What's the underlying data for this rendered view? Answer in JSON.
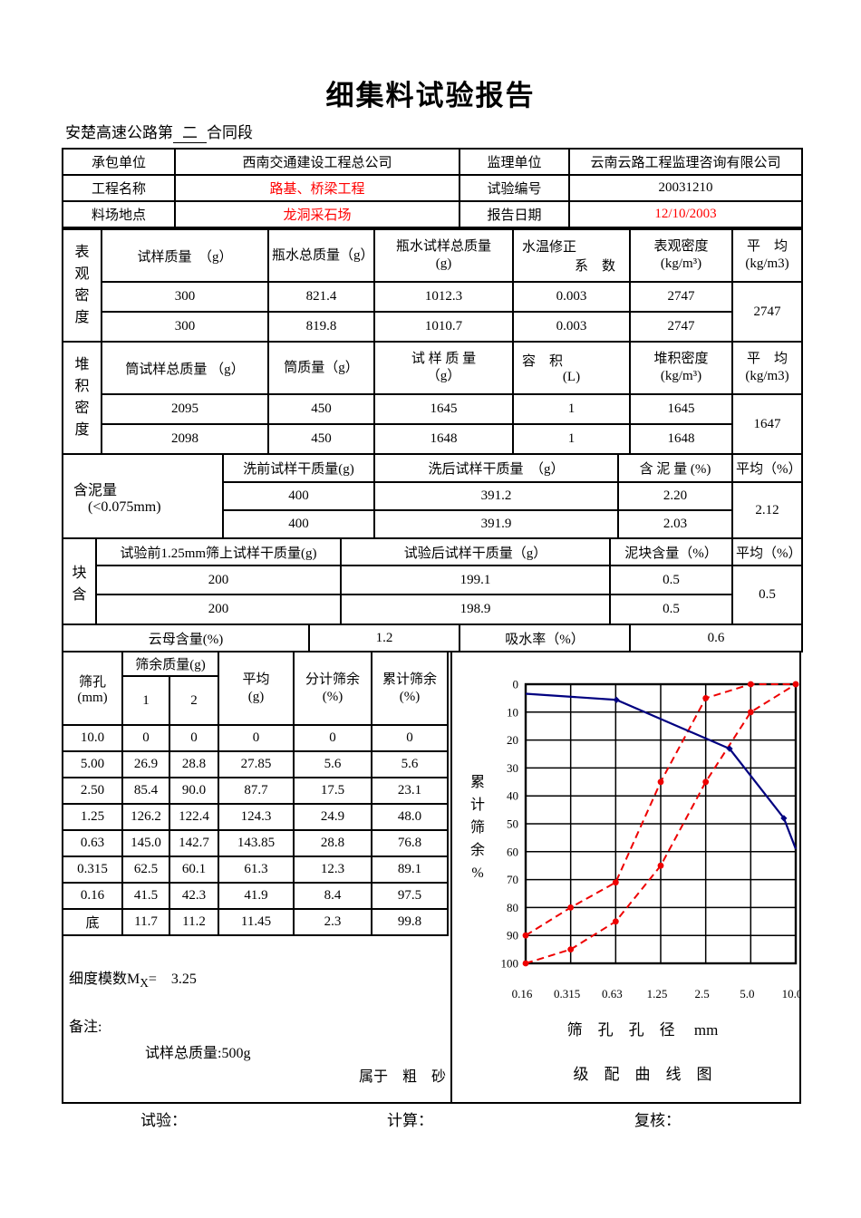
{
  "page": {
    "title": "细集料试验报告",
    "subtitle_prefix": "安楚高速公路第",
    "subtitle_underlined": "二",
    "subtitle_suffix": "合同段"
  },
  "colors": {
    "highlight_red": "#ff0000",
    "sample_curve_blue": "#000080",
    "envelope_red": "#ff0000"
  },
  "info": {
    "contractor_label": "承包单位",
    "contractor_value": "西南交通建设工程总公司",
    "supervisor_label": "监理单位",
    "supervisor_value": "云南云路工程监理咨询有限公司",
    "project_label": "工程名称",
    "project_value": "路基、桥梁工程",
    "test_no_label": "试验编号",
    "test_no_value": "20031210",
    "site_label": "料场地点",
    "site_value": "龙洞采石场",
    "date_label": "报告日期",
    "date_value": "12/10/2003"
  },
  "apparent_density": {
    "section_label": "表观密度",
    "headers": [
      "试样质量　（g）",
      "瓶水总质量（g）",
      "瓶水试样总质量\n(g)",
      "水温修正",
      "表观密度\n(kg/m³)",
      "平　均\n(kg/m3)"
    ],
    "header3_line2": "系　数",
    "rows": [
      [
        "300",
        "821.4",
        "1012.3",
        "0.003",
        "2747"
      ],
      [
        "300",
        "819.8",
        "1010.7",
        "0.003",
        "2747"
      ]
    ],
    "average": "2747"
  },
  "bulk_density": {
    "section_label": "堆积密度",
    "headers": [
      "筒试样总质量 （g）",
      "筒质量（g）",
      "试 样 质 量\n（g）",
      "容　积",
      "堆积密度\n(kg/m³)",
      "平　均\n(kg/m3)"
    ],
    "header3_line2": "(L)",
    "rows": [
      [
        "2095",
        "450",
        "1645",
        "1",
        "1645"
      ],
      [
        "2098",
        "450",
        "1648",
        "1",
        "1648"
      ]
    ],
    "average": "1647"
  },
  "mud_content": {
    "section_label_line1": "含泥量",
    "section_label_line2": "(<0.075mm)",
    "headers": [
      "洗前试样干质量(g)",
      "洗后试样干质量　（g）",
      "含 泥 量 (%)",
      "平均（%）"
    ],
    "rows": [
      [
        "400",
        "391.2",
        "2.20"
      ],
      [
        "400",
        "391.9",
        "2.03"
      ]
    ],
    "average": "2.12"
  },
  "mud_lump": {
    "section_label_top": "块",
    "section_label_bottom": "含",
    "headers": [
      "试验前1.25mm筛上试样干质量(g)",
      "试验后试样干质量（g）",
      "泥块含量（%）",
      "平均（%）"
    ],
    "rows": [
      [
        "200",
        "199.1",
        "0.5"
      ],
      [
        "200",
        "198.9",
        "0.5"
      ]
    ],
    "average": "0.5"
  },
  "mica_row": {
    "mica_label": "云母含量(%)",
    "mica_value": "1.2",
    "absorption_label": "吸水率（%）",
    "absorption_value": "0.6"
  },
  "sieve": {
    "hole_header": "筛孔",
    "hole_unit": "(mm)",
    "mass_header": "筛余质量(g)",
    "col1": "1",
    "col2": "2",
    "avg_header": "平均\n(g)",
    "partial_header": "分计筛余\n(%)",
    "cumulative_header": "累计筛余\n(%)",
    "rows": [
      {
        "size": "10.0",
        "m1": "0",
        "m2": "0",
        "avg": "0",
        "partial": "0",
        "cum": "0"
      },
      {
        "size": "5.00",
        "m1": "26.9",
        "m2": "28.8",
        "avg": "27.85",
        "partial": "5.6",
        "cum": "5.6"
      },
      {
        "size": "2.50",
        "m1": "85.4",
        "m2": "90.0",
        "avg": "87.7",
        "partial": "17.5",
        "cum": "23.1"
      },
      {
        "size": "1.25",
        "m1": "126.2",
        "m2": "122.4",
        "avg": "124.3",
        "partial": "24.9",
        "cum": "48.0"
      },
      {
        "size": "0.63",
        "m1": "145.0",
        "m2": "142.7",
        "avg": "143.85",
        "partial": "28.8",
        "cum": "76.8"
      },
      {
        "size": "0.315",
        "m1": "62.5",
        "m2": "60.1",
        "avg": "61.3",
        "partial": "12.3",
        "cum": "89.1"
      },
      {
        "size": "0.16",
        "m1": "41.5",
        "m2": "42.3",
        "avg": "41.9",
        "partial": "8.4",
        "cum": "97.5"
      },
      {
        "size": "底",
        "m1": "11.7",
        "m2": "11.2",
        "avg": "11.45",
        "partial": "2.3",
        "cum": "99.8"
      }
    ]
  },
  "notes": {
    "fineness_prefix": "细度模数M",
    "fineness_sub": "X",
    "fineness_eq": "=",
    "fineness_value": "3.25",
    "remark_label": "备注:",
    "sample_total": "试样总质量:500g",
    "classification": "属于　粗　砂"
  },
  "signatures": {
    "test": "试验：",
    "calc": "计算：",
    "review": "复核："
  },
  "chart_data": {
    "type": "line",
    "title": "级　配　曲　线　图",
    "xlabel": "筛　孔　孔　径　 mm",
    "ylabel": "累计筛余%",
    "x_tick_labels": [
      "0.16",
      "0.315",
      "0.63",
      "1.25",
      "2.5",
      "5.0",
      "10.0"
    ],
    "y_ticks": [
      0,
      10,
      20,
      30,
      40,
      50,
      60,
      70,
      80,
      90,
      100
    ],
    "y_axis_inverted": true,
    "ylim": [
      0,
      100
    ],
    "grid": true,
    "legend_position": "none",
    "series": [
      {
        "name": "级配范围下包线(红虚线)",
        "color": "#ee0000",
        "dash": true,
        "values": [
          90,
          80,
          71,
          35,
          5,
          0,
          0
        ]
      },
      {
        "name": "级配范围上包线(红虚线)",
        "color": "#ee0000",
        "dash": true,
        "values": [
          100,
          95,
          85,
          65,
          35,
          10,
          0
        ]
      },
      {
        "name": "试样累计筛余(蓝实线)",
        "color": "#000080",
        "dash": false,
        "sieve_sizes_mm": [
          10.0,
          5.0,
          2.5,
          1.25,
          0.63,
          0.315,
          0.16
        ],
        "values": [
          0,
          5.6,
          23.1,
          48.0,
          76.8,
          89.1,
          97.5
        ],
        "plotted_points": [
          {
            "xf": 0.0,
            "y": 3.4,
            "marker": false
          },
          {
            "xf": 0.336,
            "y": 5.6,
            "marker": true
          },
          {
            "xf": 0.755,
            "y": 23.1,
            "marker": true
          },
          {
            "xf": 0.956,
            "y": 48.0,
            "marker": true
          },
          {
            "xf": 1.0,
            "y": 59.0,
            "marker": false
          }
        ]
      }
    ]
  }
}
